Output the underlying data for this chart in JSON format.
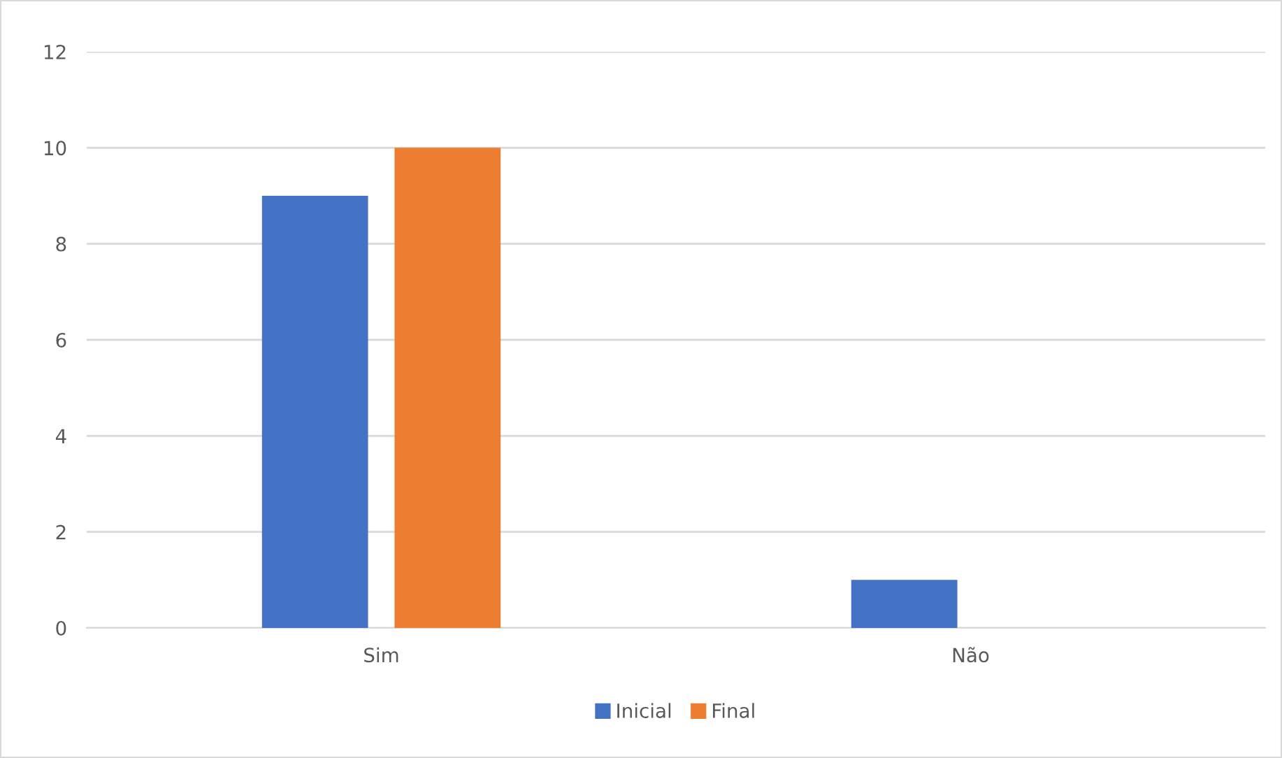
{
  "chart_data": {
    "type": "bar",
    "categories": [
      "Sim",
      "Não"
    ],
    "series": [
      {
        "name": "Inicial",
        "color": "#4472c4",
        "values": [
          9,
          1
        ]
      },
      {
        "name": "Final",
        "color": "#ed7d31",
        "values": [
          10,
          0
        ]
      }
    ],
    "ylim": [
      0,
      12
    ],
    "yticks": [
      0,
      2,
      4,
      6,
      8,
      10,
      12
    ],
    "grid": "y",
    "legend": "bottom"
  }
}
